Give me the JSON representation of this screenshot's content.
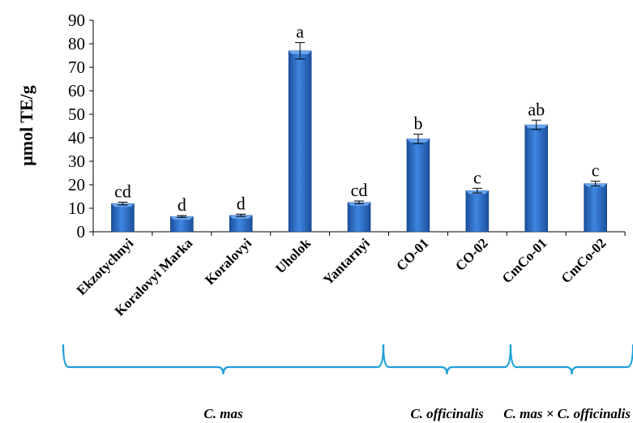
{
  "chart_data": {
    "type": "bar",
    "ylabel": "μmol TE/g",
    "ylim": [
      0,
      90
    ],
    "ytick_step": 10,
    "grid": false,
    "categories": [
      "Ekzotychnyi",
      "Koralovyi Marka",
      "Koralovyi",
      "Uholok",
      "Yantarnyi",
      "CO-01",
      "CO-02",
      "CmCo-01",
      "CmCo-02"
    ],
    "values": [
      12,
      6.5,
      7,
      77,
      12.5,
      39.5,
      17.5,
      45.5,
      20.5
    ],
    "errors": [
      0.6,
      0.4,
      0.5,
      3.5,
      0.6,
      2,
      1,
      2,
      1
    ],
    "significance": [
      "cd",
      "d",
      "d",
      "a",
      "cd",
      "b",
      "c",
      "ab",
      "c"
    ],
    "bar_color": "#2e6fcc",
    "groups": [
      {
        "label": "C. mas",
        "from": 0,
        "to": 4
      },
      {
        "label": "C. officinalis",
        "from": 5,
        "to": 6
      },
      {
        "label": "C. mas × C. officinalis",
        "from": 7,
        "to": 8
      }
    ],
    "bracket_color": "#1f9fd8"
  }
}
